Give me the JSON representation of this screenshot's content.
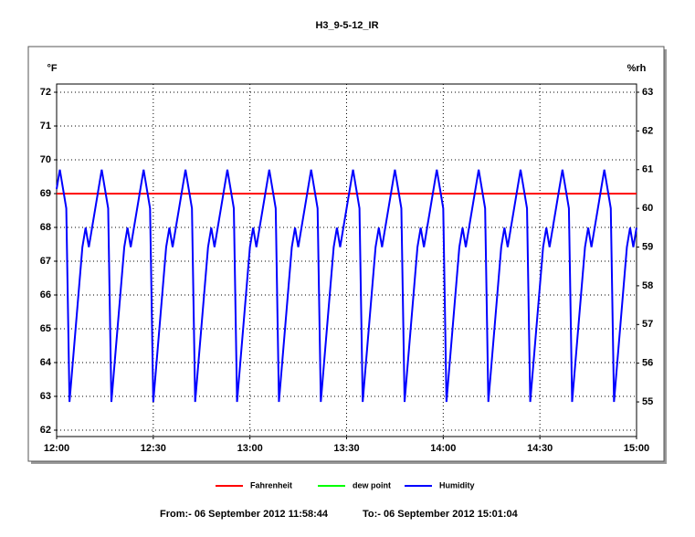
{
  "chart_data": {
    "type": "line",
    "title": "H3_9-5-12_IR",
    "y_label": "°F",
    "y2_label": "%rh",
    "from_label": "From:-  06 September 2012 11:58:44",
    "to_label": "To:-  06 September 2012 15:01:04",
    "xlim": [
      0,
      180
    ],
    "xticks": [
      {
        "value": 0,
        "label": "12:00"
      },
      {
        "value": 30,
        "label": "12:30"
      },
      {
        "value": 60,
        "label": "13:00"
      },
      {
        "value": 90,
        "label": "13:30"
      },
      {
        "value": 120,
        "label": "14:00"
      },
      {
        "value": 150,
        "label": "14:30"
      },
      {
        "value": 180,
        "label": "15:00"
      }
    ],
    "ylim": [
      62,
      72
    ],
    "yticks": [
      62,
      63,
      64,
      65,
      66,
      67,
      68,
      69,
      70,
      71,
      72
    ],
    "y2lim": [
      54.27,
      63
    ],
    "y2ticks": [
      55,
      56,
      57,
      58,
      59,
      60,
      61,
      62,
      63
    ],
    "grid": true,
    "legend": "bottom",
    "x": [
      0,
      1,
      2,
      3,
      4,
      5,
      6,
      7,
      8,
      9,
      10,
      11,
      12,
      13,
      14,
      15,
      16,
      17,
      18,
      19,
      20,
      21,
      22,
      23,
      24,
      25,
      26,
      27,
      28,
      29,
      30,
      31,
      32,
      33,
      34,
      35,
      36,
      37,
      38,
      39,
      40,
      41,
      42,
      43,
      44,
      45,
      46,
      47,
      48,
      49,
      50,
      51,
      52,
      53,
      54,
      55,
      56,
      57,
      58,
      59,
      60,
      61,
      62,
      63,
      64,
      65,
      66,
      67,
      68,
      69,
      70,
      71,
      72,
      73,
      74,
      75,
      76,
      77,
      78,
      79,
      80,
      81,
      82,
      83,
      84,
      85,
      86,
      87,
      88,
      89,
      90,
      91,
      92,
      93,
      94,
      95,
      96,
      97,
      98,
      99,
      100,
      101,
      102,
      103,
      104,
      105,
      106,
      107,
      108,
      109,
      110,
      111,
      112,
      113,
      114,
      115,
      116,
      117,
      118,
      119,
      120,
      121,
      122,
      123,
      124,
      125,
      126,
      127,
      128,
      129,
      130,
      131,
      132,
      133,
      134,
      135,
      136,
      137,
      138,
      139,
      140,
      141,
      142,
      143,
      144,
      145,
      146,
      147,
      148,
      149,
      150,
      151,
      152,
      153,
      154,
      155,
      156,
      157,
      158,
      159,
      160,
      161,
      162,
      163,
      164,
      165,
      166,
      167,
      168,
      169,
      170,
      171,
      172,
      173,
      174,
      175,
      176,
      177,
      178,
      179,
      180
    ],
    "series": [
      {
        "name": "Fahrenheit",
        "color": "#ff0000",
        "axis": "y",
        "values": [
          69,
          69,
          69,
          69,
          69,
          69,
          69,
          69,
          69,
          69,
          69,
          69,
          69,
          69,
          69,
          69,
          69,
          69,
          69,
          69,
          69,
          69,
          69,
          69,
          69,
          69,
          69,
          69,
          69,
          69,
          69,
          69,
          69,
          69,
          69,
          69,
          69,
          69,
          69,
          69,
          69,
          69,
          69,
          69,
          69,
          69,
          69,
          69,
          69,
          69,
          69,
          69,
          69,
          69,
          69,
          69,
          69,
          69,
          69,
          69,
          69,
          69,
          69,
          69,
          69,
          69,
          69,
          69,
          69,
          69,
          69,
          69,
          69,
          69,
          69,
          69,
          69,
          69,
          69,
          69,
          69,
          69,
          69,
          69,
          69,
          69,
          69,
          69,
          69,
          69,
          69,
          69,
          69,
          69,
          69,
          69,
          69,
          69,
          69,
          69,
          69,
          69,
          69,
          69,
          69,
          69,
          69,
          69,
          69,
          69,
          69,
          69,
          69,
          69,
          69,
          69,
          69,
          69,
          69,
          69,
          69,
          69,
          69,
          69,
          69,
          69,
          69,
          69,
          69,
          69,
          69,
          69,
          69,
          69,
          69,
          69,
          69,
          69,
          69,
          69,
          69,
          69,
          69,
          69,
          69,
          69,
          69,
          69,
          69,
          69,
          69,
          69,
          69,
          69,
          69,
          69,
          69,
          69,
          69,
          69,
          69,
          69,
          69,
          69,
          69,
          69,
          69,
          69,
          69,
          69,
          69,
          69,
          69,
          69,
          69,
          69,
          69,
          69,
          69,
          69,
          69
        ]
      },
      {
        "name": "dew point",
        "color": "#00ff00",
        "axis": "y",
        "values": [
          null,
          null,
          null,
          null,
          null,
          null,
          null,
          null,
          null,
          null,
          null,
          null,
          null,
          null,
          null,
          null,
          null,
          null,
          null,
          null,
          null,
          null,
          null,
          null,
          null,
          null,
          null,
          null,
          null,
          null,
          null,
          null,
          null,
          null,
          null,
          null,
          null,
          null,
          null,
          null,
          null,
          null,
          null,
          null,
          null,
          null,
          null,
          null,
          null,
          null,
          null,
          null,
          null,
          null,
          null,
          null,
          null,
          null,
          null,
          null,
          null,
          null,
          null,
          null,
          null,
          null,
          null,
          null,
          null,
          null,
          null,
          null,
          null,
          null,
          null,
          null,
          null,
          null,
          null,
          null,
          null,
          null,
          null,
          null,
          null,
          null,
          null,
          null,
          null,
          null,
          null,
          null,
          null,
          null,
          null,
          null,
          null,
          null,
          null,
          null,
          null,
          null,
          null,
          null,
          null,
          null,
          null,
          null,
          null,
          null,
          null,
          null,
          null,
          null,
          null,
          null,
          null,
          null,
          null,
          null,
          null,
          null,
          null,
          null,
          null,
          null,
          null,
          null,
          null,
          null,
          null,
          null,
          null,
          null,
          null,
          null,
          null,
          null,
          null,
          null,
          null,
          null,
          null,
          null,
          null,
          null,
          null,
          null,
          null,
          null,
          null,
          null,
          null,
          null,
          null,
          null,
          null,
          null,
          null,
          null,
          null,
          null,
          null,
          null,
          null,
          null,
          null,
          null,
          null,
          null,
          null,
          null,
          null,
          null,
          null,
          null,
          null,
          null,
          null,
          null,
          null
        ]
      },
      {
        "name": "Humidity",
        "color": "#0000ff",
        "axis": "y2",
        "values": [
          60.5,
          61,
          60.5,
          60,
          55,
          56,
          57,
          58,
          59,
          59.5,
          59,
          59.5,
          60,
          60.5,
          61,
          60.5,
          60,
          55,
          56,
          57,
          58,
          59,
          59.5,
          59,
          59.5,
          60,
          60.5,
          61,
          60.5,
          60,
          55,
          56,
          57,
          58,
          59,
          59.5,
          59,
          59.5,
          60,
          60.5,
          61,
          60.5,
          60,
          55,
          56,
          57,
          58,
          59,
          59.5,
          59,
          59.5,
          60,
          60.5,
          61,
          60.5,
          60,
          55,
          56,
          57,
          58,
          59,
          59.5,
          59,
          59.5,
          60,
          60.5,
          61,
          60.5,
          60,
          55,
          56,
          57,
          58,
          59,
          59.5,
          59,
          59.5,
          60,
          60.5,
          61,
          60.5,
          60,
          55,
          56,
          57,
          58,
          59,
          59.5,
          59,
          59.5,
          60,
          60.5,
          61,
          60.5,
          60,
          55,
          56,
          57,
          58,
          59,
          59.5,
          59,
          59.5,
          60,
          60.5,
          61,
          60.5,
          60,
          55,
          56,
          57,
          58,
          59,
          59.5,
          59,
          59.5,
          60,
          60.5,
          61,
          60.5,
          60,
          55,
          56,
          57,
          58,
          59,
          59.5,
          59,
          59.5,
          60,
          60.5,
          61,
          60.5,
          60,
          55,
          56,
          57,
          58,
          59,
          59.5,
          59,
          59.5,
          60,
          60.5,
          61,
          60.5,
          60,
          55,
          56,
          57,
          58,
          59,
          59.5,
          59,
          59.5,
          60,
          60.5,
          61,
          60.5,
          60,
          55,
          56,
          57,
          58,
          59,
          59.5,
          59,
          59.5,
          60,
          60.5,
          61,
          60.5,
          60,
          55,
          56,
          57,
          58,
          59,
          59.5,
          59,
          59.5
        ]
      }
    ]
  }
}
